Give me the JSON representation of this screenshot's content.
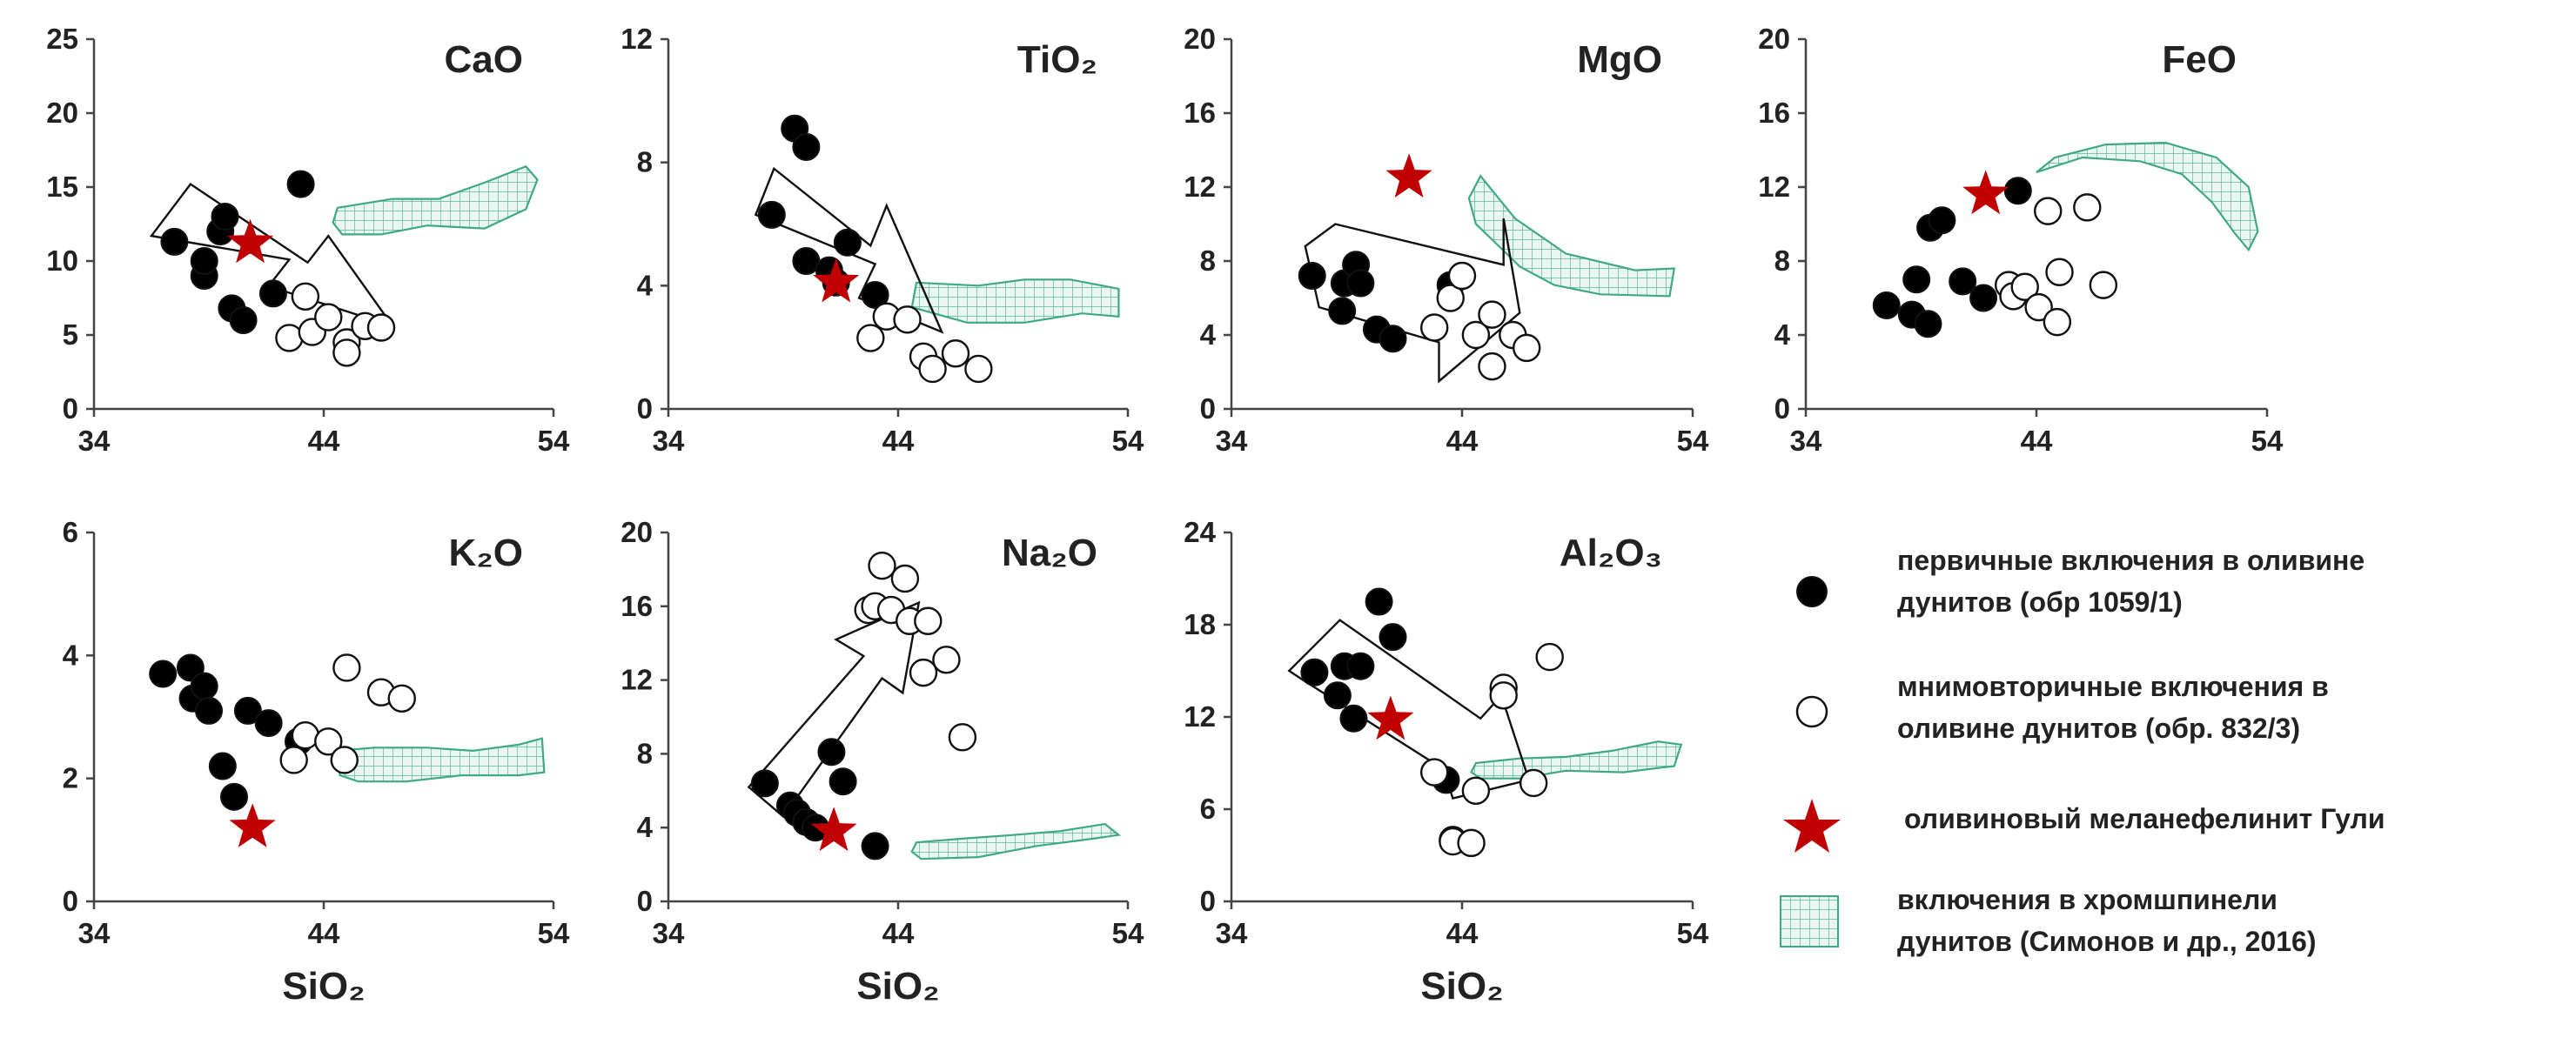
{
  "colors": {
    "axis": "#444444",
    "star": "#c00000",
    "field_stroke": "#3fa985",
    "field_fill": "#eaf6f1",
    "marker_stroke": "#111111"
  },
  "legend": {
    "primary": [
      "первичные включения в оливине",
      "дунитов (обр 1059/1)"
    ],
    "secondary": [
      "мнимовторичные включения в",
      "оливине дунитов (обр. 832/3)"
    ],
    "star": [
      "оливиновый меланефелинит Гули"
    ],
    "field": [
      "включения в хромшпинели",
      "дунитов (Симонов и др., 2016)"
    ]
  },
  "chart_data": [
    {
      "type": "scatter",
      "title": "CaO",
      "xlabel": "",
      "xlim": [
        34,
        54
      ],
      "xticks": [
        34,
        44,
        54
      ],
      "ylim": [
        0,
        25
      ],
      "yticks": [
        0,
        5,
        10,
        15,
        20,
        25
      ],
      "primary": [
        [
          37.5,
          11.3
        ],
        [
          38.8,
          9
        ],
        [
          38.8,
          10
        ],
        [
          39.5,
          12
        ],
        [
          39.7,
          13
        ],
        [
          40,
          6.8
        ],
        [
          40.5,
          6
        ],
        [
          41.8,
          7.8
        ],
        [
          43,
          15.2
        ]
      ],
      "secondary": [
        [
          42.5,
          4.8
        ],
        [
          43.2,
          7.6
        ],
        [
          43.5,
          5.2
        ],
        [
          44.2,
          6.2
        ],
        [
          45,
          4.5
        ],
        [
          45,
          3.8
        ],
        [
          45.8,
          5.6
        ],
        [
          46.5,
          5.5
        ]
      ],
      "star": [
        40.8,
        11.2
      ],
      "arrow": [
        [
          36.5,
          11.7
        ],
        [
          38.2,
          15.2
        ],
        [
          43.3,
          9.9
        ],
        [
          44.2,
          11.7
        ],
        [
          47,
          5.6
        ],
        [
          41.6,
          8.3
        ],
        [
          42.5,
          10.1
        ],
        [
          36.5,
          11.7
        ]
      ],
      "field": [
        [
          44.6,
          13.6
        ],
        [
          47,
          14.2
        ],
        [
          49,
          14.2
        ],
        [
          51,
          15.3
        ],
        [
          52.8,
          16.4
        ],
        [
          53.3,
          15.5
        ],
        [
          52.8,
          13.5
        ],
        [
          51,
          12.2
        ],
        [
          48.5,
          12.4
        ],
        [
          46.5,
          11.8
        ],
        [
          44.8,
          11.8
        ],
        [
          44.4,
          12.6
        ],
        [
          44.6,
          13.6
        ]
      ]
    },
    {
      "type": "scatter",
      "title": "TiO₂",
      "xlabel": "",
      "xlim": [
        34,
        54
      ],
      "xticks": [
        34,
        44,
        54
      ],
      "ylim": [
        0,
        12
      ],
      "yticks": [
        0,
        4,
        8,
        12
      ],
      "primary": [
        [
          38.5,
          6.3
        ],
        [
          39.5,
          9.1
        ],
        [
          40,
          4.8
        ],
        [
          40,
          8.5
        ],
        [
          41,
          4.5
        ],
        [
          41.3,
          4.1
        ],
        [
          41.8,
          5.4
        ],
        [
          43,
          3.7
        ]
      ],
      "secondary": [
        [
          42.8,
          2.3
        ],
        [
          43.5,
          3
        ],
        [
          44.4,
          2.9
        ],
        [
          45.1,
          1.7
        ],
        [
          45.5,
          1.3
        ],
        [
          46.5,
          1.8
        ],
        [
          47.5,
          1.3
        ]
      ],
      "star": [
        41.3,
        4.1
      ],
      "arrow": [
        [
          37.8,
          6.3
        ],
        [
          38.6,
          7.8
        ],
        [
          42.8,
          5.3
        ],
        [
          43.5,
          6.6
        ],
        [
          45.9,
          2.5
        ],
        [
          42.3,
          3.6
        ],
        [
          43,
          4.7
        ],
        [
          37.8,
          6.3
        ]
      ],
      "field": [
        [
          44.8,
          4.1
        ],
        [
          47.5,
          4
        ],
        [
          49.5,
          4.2
        ],
        [
          51.5,
          4.2
        ],
        [
          53.6,
          3.9
        ],
        [
          53.6,
          3
        ],
        [
          52,
          3.1
        ],
        [
          49.5,
          2.8
        ],
        [
          47,
          2.8
        ],
        [
          44.6,
          3.3
        ],
        [
          44.8,
          4.1
        ]
      ]
    },
    {
      "type": "scatter",
      "title": "MgO",
      "xlabel": "",
      "xlim": [
        34,
        54
      ],
      "xticks": [
        34,
        44,
        54
      ],
      "ylim": [
        0,
        20
      ],
      "yticks": [
        0,
        4,
        8,
        12,
        16,
        20
      ],
      "primary": [
        [
          37.5,
          7.2
        ],
        [
          38.8,
          5.3
        ],
        [
          38.9,
          6.8
        ],
        [
          39.4,
          7.8
        ],
        [
          39.6,
          6.8
        ],
        [
          40.3,
          4.3
        ],
        [
          41,
          3.8
        ],
        [
          43.5,
          6.7
        ]
      ],
      "secondary": [
        [
          42.8,
          4.4
        ],
        [
          43.5,
          6
        ],
        [
          44,
          7.2
        ],
        [
          44.6,
          4
        ],
        [
          45.3,
          5.1
        ],
        [
          45.3,
          2.3
        ],
        [
          46.2,
          4
        ],
        [
          46.8,
          3.3
        ]
      ],
      "star": [
        41.7,
        12.5
      ],
      "arrow": [
        [
          37.2,
          8.8
        ],
        [
          37.8,
          5.5
        ],
        [
          43,
          3.6
        ],
        [
          43,
          1.5
        ],
        [
          46.5,
          5.2
        ],
        [
          45.8,
          10.3
        ],
        [
          45.8,
          7.8
        ],
        [
          38.5,
          10
        ],
        [
          37.2,
          8.8
        ]
      ],
      "field": [
        [
          44.8,
          12.6
        ],
        [
          46.3,
          10.3
        ],
        [
          48.5,
          8.4
        ],
        [
          51.5,
          7.5
        ],
        [
          53.2,
          7.6
        ],
        [
          53,
          6.1
        ],
        [
          50,
          6.2
        ],
        [
          48,
          6.7
        ],
        [
          46.5,
          7.7
        ],
        [
          45.6,
          8.8
        ],
        [
          44.6,
          10
        ],
        [
          44.3,
          11.4
        ],
        [
          44.8,
          12.6
        ]
      ]
    },
    {
      "type": "scatter",
      "title": "FeO",
      "xlabel": "",
      "xlim": [
        34,
        54
      ],
      "xticks": [
        34,
        44,
        54
      ],
      "ylim": [
        0,
        20
      ],
      "yticks": [
        0,
        4,
        8,
        12,
        16,
        20
      ],
      "primary": [
        [
          37.5,
          5.6
        ],
        [
          38.6,
          5.1
        ],
        [
          38.8,
          7
        ],
        [
          39.3,
          4.6
        ],
        [
          39.4,
          9.8
        ],
        [
          39.9,
          10.2
        ],
        [
          40.8,
          6.9
        ],
        [
          41.7,
          6
        ],
        [
          43.2,
          11.8
        ]
      ],
      "secondary": [
        [
          42.8,
          6.7
        ],
        [
          43,
          6.1
        ],
        [
          43.5,
          6.6
        ],
        [
          44.1,
          5.5
        ],
        [
          44.5,
          10.7
        ],
        [
          44.9,
          4.7
        ],
        [
          45,
          7.4
        ],
        [
          46.2,
          10.9
        ],
        [
          46.9,
          6.7
        ]
      ],
      "star": [
        41.8,
        11.6
      ],
      "arrow": [],
      "field": [
        [
          44,
          12.8
        ],
        [
          46,
          13.6
        ],
        [
          48.5,
          13.4
        ],
        [
          50.3,
          12.7
        ],
        [
          51.6,
          11.2
        ],
        [
          52.6,
          9.5
        ],
        [
          53.2,
          8.6
        ],
        [
          53.6,
          9.6
        ],
        [
          53.2,
          12
        ],
        [
          51.8,
          13.6
        ],
        [
          49.6,
          14.4
        ],
        [
          47,
          14.3
        ],
        [
          44.8,
          13.6
        ],
        [
          44,
          12.8
        ]
      ]
    },
    {
      "type": "scatter",
      "title": "K₂O",
      "xlabel": "SiO₂",
      "xlim": [
        34,
        54
      ],
      "xticks": [
        34,
        44,
        54
      ],
      "ylim": [
        0,
        6
      ],
      "yticks": [
        0,
        2,
        4,
        6
      ],
      "primary": [
        [
          37,
          3.7
        ],
        [
          38.2,
          3.8
        ],
        [
          38.3,
          3.3
        ],
        [
          38.8,
          3.5
        ],
        [
          39,
          3.1
        ],
        [
          39.6,
          2.2
        ],
        [
          40.1,
          1.7
        ],
        [
          40.7,
          3.1
        ],
        [
          41.6,
          2.9
        ],
        [
          42.9,
          2.6
        ]
      ],
      "secondary": [
        [
          42.7,
          2.3
        ],
        [
          43.2,
          2.7
        ],
        [
          44.2,
          2.6
        ],
        [
          44.9,
          2.3
        ],
        [
          45,
          3.8
        ],
        [
          46.5,
          3.4
        ],
        [
          47.4,
          3.3
        ]
      ],
      "star": [
        40.9,
        1.2
      ],
      "arrow": [],
      "field": [
        [
          44.6,
          2.45
        ],
        [
          46.2,
          2.5
        ],
        [
          48.5,
          2.5
        ],
        [
          50.5,
          2.45
        ],
        [
          52.5,
          2.55
        ],
        [
          53.5,
          2.65
        ],
        [
          53.6,
          2.1
        ],
        [
          52.5,
          2.05
        ],
        [
          50,
          2.05
        ],
        [
          47.6,
          1.95
        ],
        [
          45.5,
          1.95
        ],
        [
          44.7,
          2.05
        ],
        [
          44.6,
          2.45
        ]
      ]
    },
    {
      "type": "scatter",
      "title": "Na₂O",
      "xlabel": "SiO₂",
      "xlim": [
        34,
        54
      ],
      "xticks": [
        34,
        44,
        54
      ],
      "ylim": [
        0,
        20
      ],
      "yticks": [
        0,
        4,
        8,
        12,
        16,
        20
      ],
      "primary": [
        [
          38.2,
          6.4
        ],
        [
          39.3,
          5.2
        ],
        [
          39.6,
          4.8
        ],
        [
          40,
          4.3
        ],
        [
          40.4,
          4
        ],
        [
          41.1,
          8.1
        ],
        [
          41.6,
          6.5
        ],
        [
          43,
          3
        ]
      ],
      "secondary": [
        [
          42.7,
          15.8
        ],
        [
          43,
          16
        ],
        [
          43.3,
          18.2
        ],
        [
          43.7,
          15.8
        ],
        [
          44.3,
          17.5
        ],
        [
          44.5,
          15.2
        ],
        [
          45.1,
          12.4
        ],
        [
          45.3,
          15.2
        ],
        [
          46.1,
          13.1
        ],
        [
          46.8,
          8.9
        ]
      ],
      "star": [
        41.2,
        3.8
      ],
      "arrow": [
        [
          37.5,
          6.2
        ],
        [
          39,
          4.6
        ],
        [
          43.3,
          12.1
        ],
        [
          44.2,
          11.3
        ],
        [
          44.9,
          16.2
        ],
        [
          41.3,
          14.2
        ],
        [
          42.5,
          13.3
        ],
        [
          37.5,
          6.2
        ]
      ],
      "field": [
        [
          44.8,
          3.2
        ],
        [
          46.8,
          3.4
        ],
        [
          49,
          3.6
        ],
        [
          51,
          3.8
        ],
        [
          53,
          4.2
        ],
        [
          53.6,
          3.6
        ],
        [
          52.5,
          3.4
        ],
        [
          50,
          3
        ],
        [
          47.5,
          2.4
        ],
        [
          45,
          2.3
        ],
        [
          44.6,
          2.7
        ],
        [
          44.8,
          3.2
        ]
      ]
    },
    {
      "type": "scatter",
      "title": "Al₂O₃",
      "xlabel": "SiO₂",
      "xlim": [
        34,
        54
      ],
      "xticks": [
        34,
        44,
        54
      ],
      "ylim": [
        0,
        24
      ],
      "yticks": [
        0,
        6,
        12,
        18,
        24
      ],
      "primary": [
        [
          37.6,
          14.9
        ],
        [
          38.6,
          13.4
        ],
        [
          38.9,
          15.3
        ],
        [
          39.3,
          11.9
        ],
        [
          39.6,
          15.3
        ],
        [
          40.4,
          19.5
        ],
        [
          41,
          17.2
        ],
        [
          43.3,
          7.9
        ]
      ],
      "secondary": [
        [
          42.8,
          8.4
        ],
        [
          43.6,
          4
        ],
        [
          43.6,
          3.9
        ],
        [
          44.4,
          3.8
        ],
        [
          44.6,
          7.2
        ],
        [
          45.8,
          13.9
        ],
        [
          45.8,
          13.4
        ],
        [
          47.1,
          7.7
        ],
        [
          47.8,
          15.9
        ]
      ],
      "star": [
        40.9,
        11.8
      ],
      "arrow": [
        [
          36.5,
          15
        ],
        [
          37,
          14.5
        ],
        [
          43.2,
          8.6
        ],
        [
          43.6,
          6.7
        ],
        [
          46.9,
          7.9
        ],
        [
          45.7,
          13.4
        ],
        [
          44.8,
          11.9
        ],
        [
          38.7,
          18.3
        ],
        [
          36.5,
          15
        ]
      ],
      "field": [
        [
          44.6,
          9
        ],
        [
          46.5,
          9.3
        ],
        [
          48.5,
          9.4
        ],
        [
          50.5,
          9.8
        ],
        [
          52.5,
          10.4
        ],
        [
          53.5,
          10.2
        ],
        [
          53.2,
          8.8
        ],
        [
          51,
          8.4
        ],
        [
          48.5,
          8.5
        ],
        [
          46.5,
          8
        ],
        [
          44.8,
          8
        ],
        [
          44.4,
          8.4
        ],
        [
          44.6,
          9
        ]
      ]
    }
  ]
}
